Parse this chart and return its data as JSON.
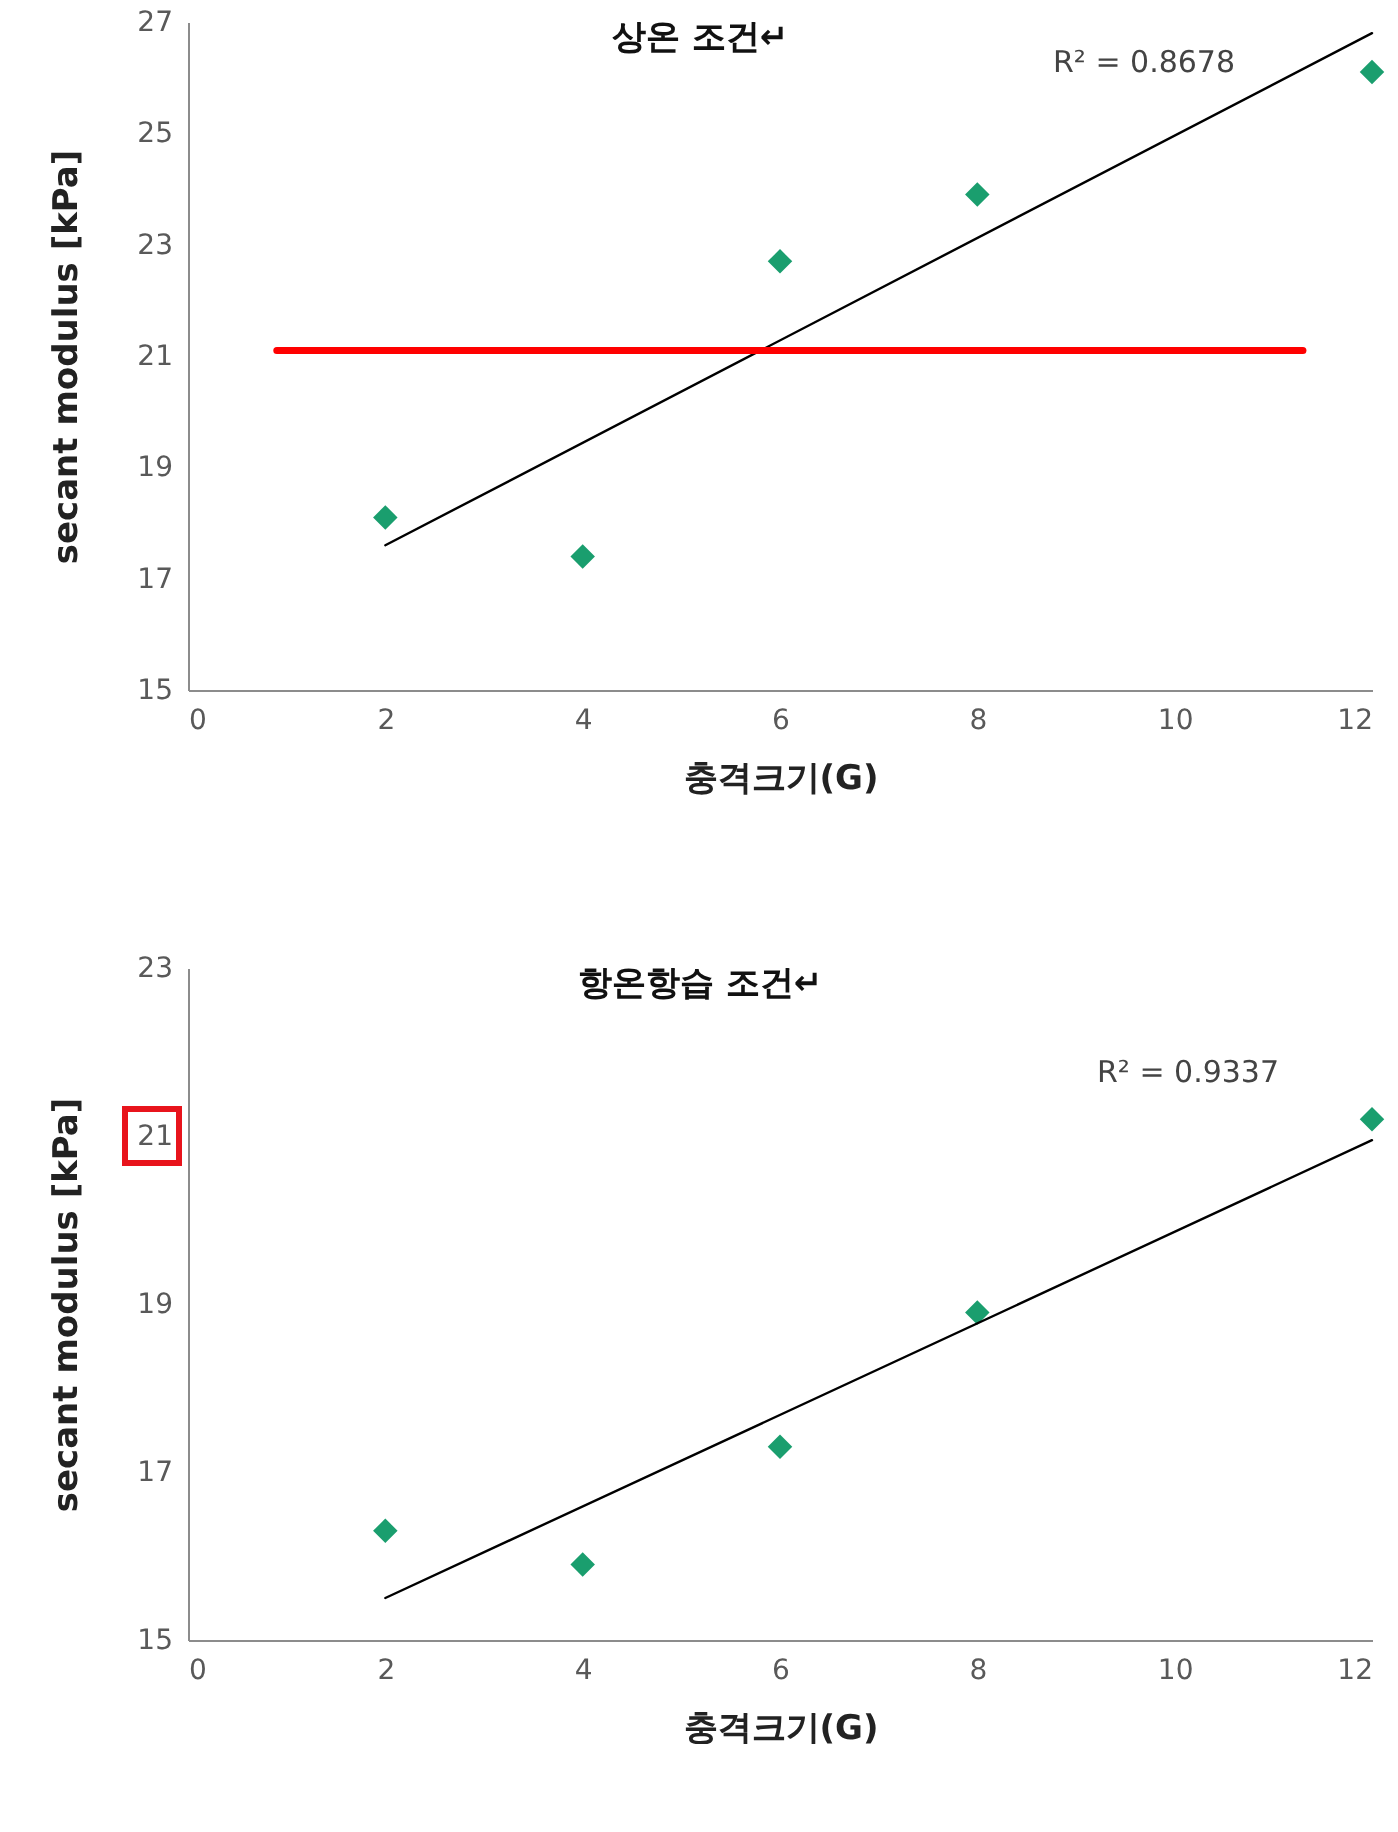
{
  "chart_data": [
    {
      "type": "scatter",
      "title": "상온 조건↵",
      "xlabel": "충격크기(G)",
      "ylabel": "secant modulus  [kPa]",
      "xlim": [
        0,
        12
      ],
      "xticks": [
        0,
        2,
        4,
        6,
        8,
        10,
        12
      ],
      "ylim": [
        15,
        27
      ],
      "yticks": [
        15,
        17,
        19,
        21,
        23,
        25,
        27
      ],
      "grid": false,
      "annotations": [
        "R² = 0.8678"
      ],
      "series": [
        {
          "marker": "diamond",
          "color": "#1a9e6e",
          "x": [
            2,
            4,
            6,
            8,
            12
          ],
          "values": [
            18.1,
            17.4,
            22.7,
            23.9,
            26.1
          ]
        },
        {
          "type": "line",
          "color": "#000000",
          "x": [
            2,
            12
          ],
          "values": [
            17.6,
            26.8
          ]
        },
        {
          "type": "line",
          "color": "#ff0000",
          "x": [
            0.9,
            11.3
          ],
          "values": [
            21.1,
            21.1
          ]
        }
      ]
    },
    {
      "type": "scatter",
      "title": "항온항습 조건↵",
      "xlabel": "충격크기(G)",
      "ylabel": "secant modulus  [kPa]",
      "xlim": [
        0,
        12
      ],
      "xticks": [
        0,
        2,
        4,
        6,
        8,
        10,
        12
      ],
      "ylim": [
        15,
        23
      ],
      "yticks": [
        15,
        17,
        19,
        21,
        23
      ],
      "grid": false,
      "annotations": [
        "R² = 0.9337"
      ],
      "series": [
        {
          "marker": "diamond",
          "color": "#1a9e6e",
          "x": [
            2,
            4,
            6,
            8,
            12
          ],
          "values": [
            16.3,
            15.9,
            17.3,
            18.9,
            21.2
          ]
        },
        {
          "type": "line",
          "color": "#000000",
          "x": [
            2,
            12
          ],
          "values": [
            15.5,
            20.95
          ]
        }
      ]
    }
  ]
}
